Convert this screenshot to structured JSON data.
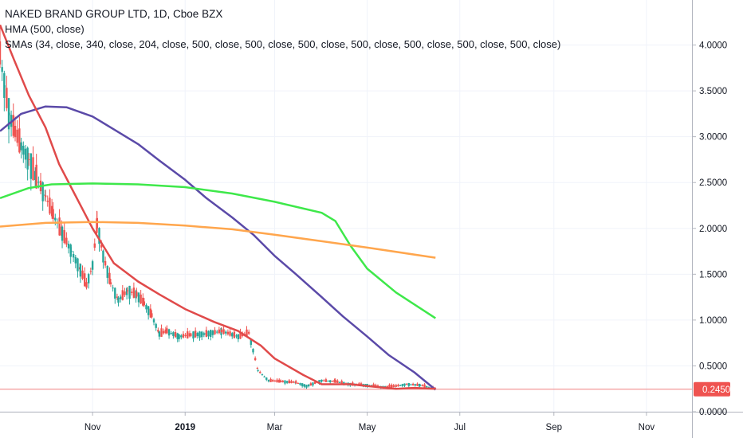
{
  "legend": {
    "title": "NAKED BRAND GROUP LTD, 1D, Cboe BZX",
    "hma": "HMA (500, close)",
    "smas": "SMAs (34, close, 340, close, 204, close, 500, close, 500, close, 500, close, 500, close, 500, close, 500, close, 500, close)"
  },
  "colors": {
    "up": "#26a69a",
    "down": "#ef5350",
    "hma": "#5b4aa8",
    "sma34": "#e04a4a",
    "sma_green": "#3ee84a",
    "sma_orange": "#ffa64d",
    "price_line": "#f08080",
    "price_tag": "#ef5350",
    "grid": "#f0f3fa",
    "axis_text": "#131722"
  },
  "chart_data": {
    "type": "line",
    "title": "NAKED BRAND GROUP LTD, 1D, Cboe BZX",
    "ylim": [
      0,
      4.3
    ],
    "y_ticks": [
      "0.0000",
      "0.5000",
      "1.0000",
      "1.5000",
      "2.0000",
      "2.5000",
      "3.0000",
      "3.5000",
      "4.0000"
    ],
    "y_tick_values": [
      0,
      0.5,
      1.0,
      1.5,
      2.0,
      2.5,
      3.0,
      3.5,
      4.0
    ],
    "x_ticks": [
      "Nov",
      "2019",
      "Mar",
      "May",
      "Jul",
      "Sep",
      "Nov"
    ],
    "xlim": [
      "2018-09-01",
      "2019-12-01"
    ],
    "x_tick_dates": [
      "2018-11-01",
      "2019-01-01",
      "2019-03-01",
      "2019-05-01",
      "2019-07-01",
      "2019-09-01",
      "2019-11-01"
    ],
    "last_price": "0.2450",
    "last_price_value": 0.245,
    "series": [
      {
        "name": "HMA (500, close)",
        "points": [
          [
            "2018-09-01",
            3.06
          ],
          [
            "2018-09-15",
            3.25
          ],
          [
            "2018-10-01",
            3.33
          ],
          [
            "2018-10-15",
            3.32
          ],
          [
            "2018-11-01",
            3.22
          ],
          [
            "2018-11-15",
            3.08
          ],
          [
            "2018-12-01",
            2.92
          ],
          [
            "2018-12-15",
            2.74
          ],
          [
            "2019-01-01",
            2.53
          ],
          [
            "2019-01-15",
            2.33
          ],
          [
            "2019-02-01",
            2.12
          ],
          [
            "2019-02-15",
            1.93
          ],
          [
            "2019-03-01",
            1.7
          ],
          [
            "2019-03-15",
            1.5
          ],
          [
            "2019-04-01",
            1.25
          ],
          [
            "2019-04-15",
            1.04
          ],
          [
            "2019-05-01",
            0.82
          ],
          [
            "2019-05-15",
            0.62
          ],
          [
            "2019-06-01",
            0.43
          ],
          [
            "2019-06-15",
            0.24
          ]
        ]
      },
      {
        "name": "SMA 34",
        "points": [
          [
            "2018-09-01",
            4.22
          ],
          [
            "2018-09-10",
            3.85
          ],
          [
            "2018-09-20",
            3.45
          ],
          [
            "2018-10-01",
            3.1
          ],
          [
            "2018-10-10",
            2.7
          ],
          [
            "2018-10-20",
            2.38
          ],
          [
            "2018-11-01",
            2.0
          ],
          [
            "2018-11-15",
            1.62
          ],
          [
            "2018-12-01",
            1.42
          ],
          [
            "2018-12-15",
            1.28
          ],
          [
            "2019-01-01",
            1.12
          ],
          [
            "2019-01-20",
            0.98
          ],
          [
            "2019-02-05",
            0.88
          ],
          [
            "2019-02-20",
            0.72
          ],
          [
            "2019-03-01",
            0.58
          ],
          [
            "2019-03-20",
            0.4
          ],
          [
            "2019-04-01",
            0.3
          ],
          [
            "2019-04-20",
            0.3
          ],
          [
            "2019-05-01",
            0.28
          ],
          [
            "2019-05-20",
            0.25
          ],
          [
            "2019-06-01",
            0.26
          ],
          [
            "2019-06-15",
            0.25
          ]
        ]
      },
      {
        "name": "SMA 340",
        "points": [
          [
            "2018-09-01",
            2.33
          ],
          [
            "2018-09-20",
            2.44
          ],
          [
            "2018-10-05",
            2.48
          ],
          [
            "2018-11-01",
            2.49
          ],
          [
            "2018-12-01",
            2.48
          ],
          [
            "2019-01-01",
            2.45
          ],
          [
            "2019-02-01",
            2.38
          ],
          [
            "2019-03-01",
            2.29
          ],
          [
            "2019-04-01",
            2.17
          ],
          [
            "2019-04-10",
            2.08
          ],
          [
            "2019-04-20",
            1.81
          ],
          [
            "2019-05-01",
            1.56
          ],
          [
            "2019-05-20",
            1.3
          ],
          [
            "2019-06-15",
            1.02
          ]
        ]
      },
      {
        "name": "SMA 204",
        "points": [
          [
            "2018-09-01",
            2.02
          ],
          [
            "2018-10-01",
            2.06
          ],
          [
            "2018-11-01",
            2.07
          ],
          [
            "2018-12-01",
            2.06
          ],
          [
            "2019-01-01",
            2.03
          ],
          [
            "2019-02-01",
            1.99
          ],
          [
            "2019-03-01",
            1.93
          ],
          [
            "2019-04-01",
            1.86
          ],
          [
            "2019-05-01",
            1.79
          ],
          [
            "2019-06-15",
            1.68
          ]
        ]
      },
      {
        "name": "close",
        "points": [
          [
            "2018-09-01",
            3.9
          ],
          [
            "2018-09-04",
            3.55
          ],
          [
            "2018-09-07",
            3.25
          ],
          [
            "2018-09-11",
            3.05
          ],
          [
            "2018-09-15",
            2.9
          ],
          [
            "2018-09-20",
            2.75
          ],
          [
            "2018-09-25",
            2.55
          ],
          [
            "2018-10-01",
            2.35
          ],
          [
            "2018-10-06",
            2.15
          ],
          [
            "2018-10-12",
            1.95
          ],
          [
            "2018-10-18",
            1.75
          ],
          [
            "2018-10-24",
            1.55
          ],
          [
            "2018-10-28",
            1.38
          ],
          [
            "2018-11-01",
            1.6
          ],
          [
            "2018-11-04",
            2.05
          ],
          [
            "2018-11-08",
            1.7
          ],
          [
            "2018-11-13",
            1.4
          ],
          [
            "2018-11-18",
            1.22
          ],
          [
            "2018-11-24",
            1.32
          ],
          [
            "2018-11-30",
            1.28
          ],
          [
            "2018-12-05",
            1.18
          ],
          [
            "2018-12-10",
            1.05
          ],
          [
            "2018-12-15",
            0.85
          ],
          [
            "2018-12-20",
            0.88
          ],
          [
            "2018-12-28",
            0.82
          ],
          [
            "2019-01-05",
            0.84
          ],
          [
            "2019-01-15",
            0.85
          ],
          [
            "2019-01-25",
            0.88
          ],
          [
            "2019-02-05",
            0.82
          ],
          [
            "2019-02-12",
            0.86
          ],
          [
            "2019-02-18",
            0.45
          ],
          [
            "2019-02-25",
            0.34
          ],
          [
            "2019-03-05",
            0.33
          ],
          [
            "2019-03-15",
            0.32
          ],
          [
            "2019-03-22",
            0.28
          ],
          [
            "2019-04-01",
            0.34
          ],
          [
            "2019-04-10",
            0.33
          ],
          [
            "2019-04-20",
            0.3
          ],
          [
            "2019-05-01",
            0.29
          ],
          [
            "2019-05-10",
            0.27
          ],
          [
            "2019-05-20",
            0.28
          ],
          [
            "2019-05-27",
            0.3
          ],
          [
            "2019-06-05",
            0.29
          ],
          [
            "2019-06-15",
            0.25
          ]
        ]
      }
    ]
  }
}
